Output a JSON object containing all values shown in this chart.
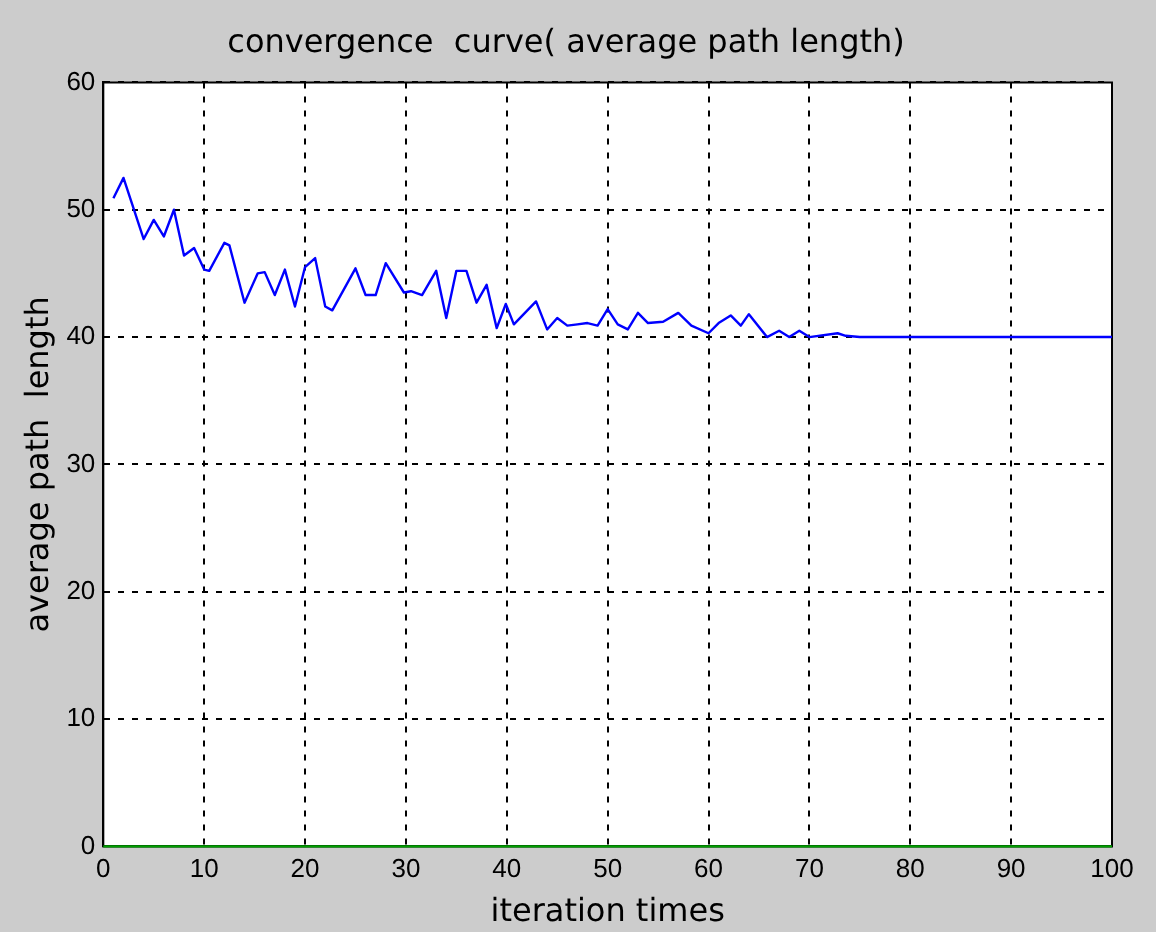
{
  "chart_data": {
    "type": "line",
    "title": "convergence  curve( average path length)",
    "xlabel": "iteration times",
    "ylabel": "average path  length",
    "xlim": [
      0,
      100
    ],
    "xticks": [
      0,
      10,
      20,
      30,
      40,
      50,
      60,
      70,
      80,
      90,
      100
    ],
    "ylim": [
      0,
      60
    ],
    "yticks": [
      0,
      10,
      20,
      30,
      40,
      50,
      60
    ],
    "grid": true,
    "legend": false,
    "marker": "none",
    "line_style": "solid",
    "series": [
      {
        "color": "#0000ff",
        "x": [
          1,
          2,
          4,
          5,
          6,
          7,
          8,
          9,
          10,
          10.5,
          12,
          12.5,
          14,
          15.3,
          16,
          17,
          18,
          19,
          20,
          21,
          22,
          22.7,
          25,
          26,
          27,
          28,
          29.8,
          30.5,
          31.6,
          33,
          34,
          35,
          36,
          37,
          38,
          39,
          39.9,
          40.7,
          42.9,
          44,
          45,
          46,
          47,
          48,
          49,
          50,
          51,
          52,
          53,
          54,
          55.5,
          57,
          58.3,
          60,
          61,
          62.2,
          63.2,
          64,
          65.8,
          67,
          68,
          69,
          70,
          72.8,
          73.6,
          75,
          100
        ],
        "values": [
          50.9,
          52.5,
          47.7,
          49.2,
          47.9,
          50,
          46.4,
          47,
          45.3,
          45.2,
          47.4,
          47.2,
          42.7,
          45,
          45.1,
          43.3,
          45.3,
          42.4,
          45.5,
          46.2,
          42.4,
          42.1,
          45.4,
          43.3,
          43.3,
          45.8,
          43.5,
          43.6,
          43.3,
          45.2,
          41.5,
          45.2,
          45.2,
          42.7,
          44.1,
          40.7,
          42.6,
          41,
          42.8,
          40.6,
          41.5,
          40.9,
          41,
          41.1,
          40.9,
          42.2,
          41,
          40.6,
          41.9,
          41.1,
          41.2,
          41.9,
          40.9,
          40.3,
          41.1,
          41.7,
          40.9,
          41.8,
          40,
          40.5,
          40,
          40.5,
          40,
          40.3,
          40.1,
          40,
          40
        ]
      },
      {
        "color": "#00a000",
        "x": [
          0,
          100
        ],
        "values": [
          0,
          0
        ]
      }
    ]
  }
}
